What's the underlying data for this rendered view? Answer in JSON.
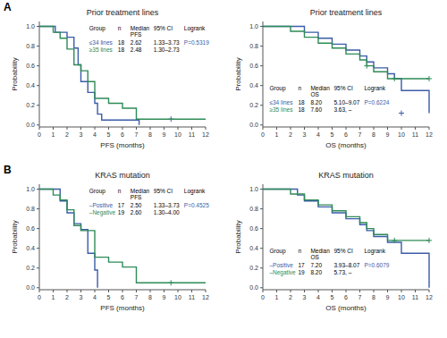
{
  "chart_data": [
    {
      "type": "line",
      "panel_label": "A",
      "title": "Prior treatment lines",
      "x_label": "PFS (months)",
      "y_label": "Probability",
      "xlim": [
        0,
        12
      ],
      "ylim": [
        -0.02,
        1.05
      ],
      "xticks": [
        0,
        1,
        2,
        3,
        4,
        5,
        6,
        7,
        8,
        9,
        10,
        11,
        12
      ],
      "yticks": [
        {
          "value": 0.0,
          "label": "0.0"
        },
        0.2,
        0.4,
        0.6,
        0.8,
        {
          "value": 1.0,
          "label": "1.0"
        }
      ],
      "grid": false,
      "series": [
        {
          "name": "≤34 lines",
          "color": "#3a5ca8",
          "line_style": "step",
          "marker": "plus",
          "x": [
            0,
            1.0,
            1.15,
            2.0,
            2.5,
            2.8,
            3.0,
            3.5,
            4.0,
            4.2,
            4.5,
            7.0,
            7.2
          ],
          "values": [
            1.0,
            1.0,
            0.94,
            0.89,
            0.78,
            0.61,
            0.44,
            0.33,
            0.22,
            0.11,
            0.05,
            0.05,
            0.0
          ],
          "censor_x": [
            9.5
          ],
          "censor_values": [
            0.06
          ]
        },
        {
          "name": "≥35 lines",
          "color": "#2e8b57",
          "line_style": "step",
          "marker": "plus",
          "x": [
            0,
            1.0,
            1.5,
            2.0,
            2.5,
            3.0,
            3.5,
            4.0,
            5.0,
            6.0,
            7.0,
            9.5,
            12.0
          ],
          "values": [
            1.0,
            0.94,
            0.88,
            0.77,
            0.61,
            0.55,
            0.44,
            0.27,
            0.22,
            0.17,
            0.06,
            0.06,
            0.06
          ]
        }
      ],
      "table": {
        "header": [
          "Group",
          "n",
          "Median\nPFS",
          "95% CI",
          "Logrank"
        ],
        "rows": [
          [
            "18",
            "2.62",
            "1.33–3.73",
            "P=0.5319"
          ],
          [
            "18",
            "2.48",
            "1.30–2.73"
          ]
        ]
      }
    },
    {
      "type": "line",
      "title": "Prior treatment lines",
      "x_label": "OS (months)",
      "y_label": "Probability",
      "xlim": [
        0,
        12
      ],
      "ylim": [
        -0.02,
        1.05
      ],
      "xticks": [
        0,
        1,
        2,
        3,
        4,
        5,
        6,
        7,
        8,
        9,
        10,
        11,
        12
      ],
      "yticks": [
        {
          "value": 0.0,
          "label": "0.0"
        },
        0.2,
        0.4,
        0.6,
        0.8,
        {
          "value": 1.0,
          "label": "1.0"
        }
      ],
      "grid": false,
      "series": [
        {
          "name": "≤34 lines",
          "color": "#3a5ca8",
          "line_style": "step",
          "marker": "plus",
          "x": [
            0,
            2.5,
            3.0,
            4.0,
            5.0,
            6.0,
            7.0,
            7.5,
            8.0,
            9.0,
            9.5,
            10.0,
            12.0
          ],
          "values": [
            1.0,
            1.0,
            0.94,
            0.88,
            0.82,
            0.76,
            0.7,
            0.64,
            0.58,
            0.52,
            0.47,
            0.35,
            0.12
          ],
          "censor_x": [
            10.0
          ],
          "censor_values": [
            0.12
          ]
        },
        {
          "name": "≥35 lines",
          "color": "#2e8b57",
          "line_style": "step",
          "marker": "plus",
          "x": [
            0,
            2.0,
            3.0,
            4.0,
            5.0,
            6.0,
            7.0,
            7.5,
            8.0,
            9.0,
            9.5,
            12.0
          ],
          "values": [
            1.0,
            0.95,
            0.89,
            0.83,
            0.78,
            0.72,
            0.66,
            0.6,
            0.54,
            0.47,
            0.47,
            0.47
          ],
          "censor_x": [
            7.5,
            9.5,
            12.0
          ],
          "censor_values": [
            0.6,
            0.47,
            0.47
          ]
        }
      ],
      "table": {
        "header": [
          "Group",
          "n",
          "Median\nOS",
          "95% CI",
          "Logrank"
        ],
        "rows": [
          [
            "18",
            "8.20",
            "5.10–9.07",
            "P=0.6224"
          ],
          [
            "18",
            "7.60",
            "3.63, –"
          ]
        ]
      }
    },
    {
      "type": "line",
      "panel_label": "B",
      "title": "KRAS mutation",
      "x_label": "PFS (months)",
      "y_label": "Probability",
      "xlim": [
        0,
        12
      ],
      "ylim": [
        -0.02,
        1.05
      ],
      "xticks": [
        0,
        1,
        2,
        3,
        4,
        5,
        6,
        7,
        8,
        9,
        10,
        11,
        12
      ],
      "yticks": [
        {
          "value": 0.0,
          "label": "0.0"
        },
        0.2,
        0.4,
        0.6,
        0.8,
        {
          "value": 1.0,
          "label": "1.0"
        }
      ],
      "grid": false,
      "series": [
        {
          "name": "–Positive",
          "color": "#3a5ca8",
          "line_style": "step",
          "marker": "plus",
          "x": [
            0,
            1.0,
            1.5,
            2.0,
            2.5,
            3.0,
            3.5,
            4.0,
            4.2
          ],
          "values": [
            1.0,
            1.0,
            0.88,
            0.76,
            0.65,
            0.59,
            0.35,
            0.18,
            0.0
          ]
        },
        {
          "name": "–Negative",
          "color": "#2e8b57",
          "line_style": "step",
          "marker": "plus",
          "x": [
            0,
            1.0,
            1.5,
            2.0,
            2.5,
            3.0,
            4.0,
            5.0,
            6.0,
            7.0,
            9.5,
            12.0
          ],
          "values": [
            1.0,
            0.94,
            0.89,
            0.79,
            0.63,
            0.58,
            0.31,
            0.26,
            0.21,
            0.05,
            0.05,
            0.05
          ],
          "censor_x": [
            9.5
          ],
          "censor_values": [
            0.05
          ]
        }
      ],
      "table": {
        "header": [
          "Group",
          "n",
          "Median\nPFS",
          "95% CI",
          "Logrank"
        ],
        "rows": [
          [
            "17",
            "2.50",
            "1.33–3.73",
            "P=0.4525"
          ],
          [
            "19",
            "2.60",
            "1.30–4.00"
          ]
        ]
      }
    },
    {
      "type": "line",
      "title": "KRAS mutation",
      "x_label": "OS (months)",
      "y_label": "Probability",
      "xlim": [
        0,
        12
      ],
      "ylim": [
        -0.02,
        1.05
      ],
      "xticks": [
        0,
        1,
        2,
        3,
        4,
        5,
        6,
        7,
        8,
        9,
        10,
        11,
        12
      ],
      "yticks": [
        {
          "value": 0.0,
          "label": "0.0"
        },
        0.2,
        0.4,
        0.6,
        0.8,
        {
          "value": 1.0,
          "label": "1.0"
        }
      ],
      "grid": false,
      "series": [
        {
          "name": "–Positive",
          "color": "#3a5ca8",
          "line_style": "step",
          "marker": "plus",
          "x": [
            0,
            2.5,
            3.0,
            4.0,
            5.0,
            6.0,
            7.0,
            7.5,
            8.0,
            9.0,
            10.0,
            12.0
          ],
          "values": [
            1.0,
            0.94,
            0.88,
            0.82,
            0.76,
            0.7,
            0.64,
            0.58,
            0.52,
            0.46,
            0.35,
            0.0
          ]
        },
        {
          "name": "–Negative",
          "color": "#2e8b57",
          "line_style": "step",
          "marker": "plus",
          "x": [
            0,
            2.0,
            3.0,
            4.0,
            5.0,
            6.0,
            7.0,
            7.5,
            8.0,
            9.0,
            9.5,
            12.0
          ],
          "values": [
            1.0,
            0.95,
            0.89,
            0.84,
            0.78,
            0.72,
            0.66,
            0.6,
            0.54,
            0.48,
            0.48,
            0.48
          ],
          "censor_x": [
            9.5,
            12.0
          ],
          "censor_values": [
            0.48,
            0.48
          ]
        }
      ],
      "table": {
        "header": [
          "Group",
          "n",
          "Median\nOS",
          "95% CI",
          "Logrank"
        ],
        "rows": [
          [
            "17",
            "7.20",
            "3.93–8.07",
            "P=0.6079"
          ],
          [
            "19",
            "8.20",
            "5.73, –"
          ]
        ]
      }
    }
  ]
}
